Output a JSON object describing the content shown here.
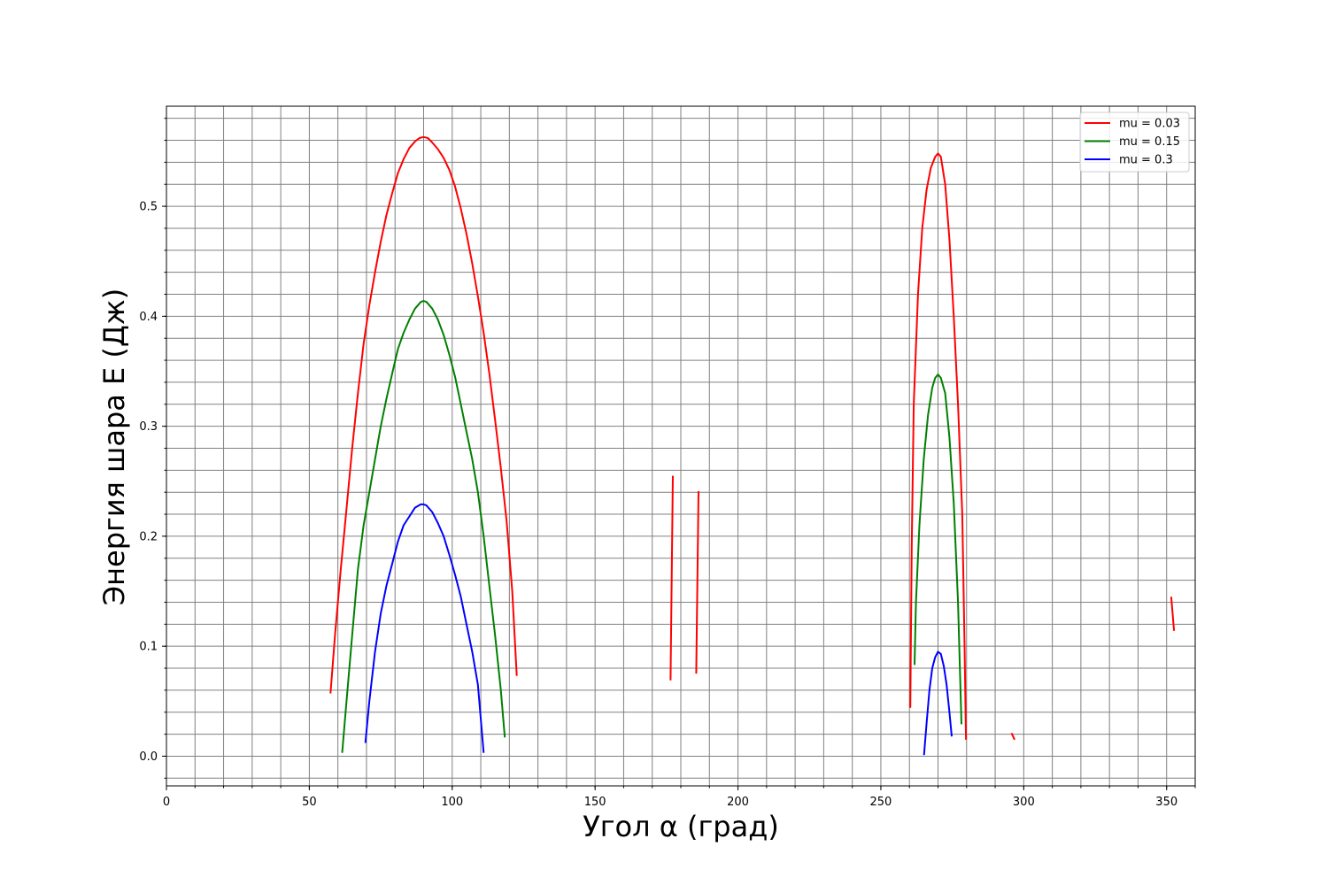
{
  "chart_data": {
    "type": "line",
    "title": "",
    "xlabel": "Угол α (град)",
    "ylabel": "Энергия шара E (Дж)",
    "xlim": [
      0,
      360
    ],
    "ylim": [
      -0.027,
      0.591
    ],
    "x_ticks": [
      0,
      50,
      100,
      150,
      200,
      250,
      300,
      350
    ],
    "x_tick_labels": [
      "0",
      "50",
      "100",
      "150",
      "200",
      "250",
      "300",
      "350"
    ],
    "y_ticks": [
      0.0,
      0.1,
      0.2,
      0.3,
      0.4,
      0.5
    ],
    "y_tick_labels": [
      "0.0",
      "0.1",
      "0.2",
      "0.3",
      "0.4",
      "0.5"
    ],
    "x_minor_step": 10,
    "y_minor_step": 0.02,
    "grid": true,
    "legend_position": "top-right",
    "series": [
      {
        "name": "mu = 0.03",
        "color": "#ff0000",
        "segments": [
          [
            [
              57.4,
              0.057
            ],
            [
              59,
              0.11
            ],
            [
              61,
              0.17
            ],
            [
              63,
              0.225
            ],
            [
              65,
              0.28
            ],
            [
              67,
              0.33
            ],
            [
              69,
              0.375
            ],
            [
              71,
              0.41
            ],
            [
              73,
              0.44
            ],
            [
              75,
              0.468
            ],
            [
              77,
              0.492
            ],
            [
              79,
              0.512
            ],
            [
              81,
              0.53
            ],
            [
              83,
              0.543
            ],
            [
              85,
              0.553
            ],
            [
              87,
              0.559
            ],
            [
              88.5,
              0.562
            ],
            [
              90,
              0.563
            ],
            [
              91.5,
              0.562
            ],
            [
              93,
              0.558
            ],
            [
              95,
              0.552
            ],
            [
              97,
              0.544
            ],
            [
              99,
              0.533
            ],
            [
              101,
              0.518
            ],
            [
              103,
              0.498
            ],
            [
              105,
              0.475
            ],
            [
              107,
              0.448
            ],
            [
              109,
              0.418
            ],
            [
              111,
              0.385
            ],
            [
              113,
              0.348
            ],
            [
              115,
              0.306
            ],
            [
              117,
              0.262
            ],
            [
              119,
              0.215
            ],
            [
              121,
              0.15
            ],
            [
              122.6,
              0.073
            ]
          ],
          [
            [
              176.4,
              0.069
            ],
            [
              177.2,
              0.255
            ]
          ],
          [
            [
              185.4,
              0.075
            ],
            [
              186.2,
              0.241
            ]
          ],
          [
            [
              260.3,
              0.044
            ],
            [
              260.8,
              0.19
            ],
            [
              261.5,
              0.32
            ],
            [
              263,
              0.42
            ],
            [
              264.5,
              0.48
            ],
            [
              266,
              0.515
            ],
            [
              267.5,
              0.535
            ],
            [
              269,
              0.545
            ],
            [
              270,
              0.548
            ],
            [
              271,
              0.545
            ],
            [
              272.5,
              0.52
            ],
            [
              274,
              0.47
            ],
            [
              275.5,
              0.4
            ],
            [
              277,
              0.32
            ],
            [
              278.5,
              0.22
            ],
            [
              279.3,
              0.1
            ],
            [
              279.8,
              0.015
            ]
          ],
          [
            [
              295.7,
              0.021
            ],
            [
              296.8,
              0.015
            ]
          ],
          [
            [
              351.6,
              0.145
            ],
            [
              352.6,
              0.114
            ]
          ]
        ]
      },
      {
        "name": "mu = 0.15",
        "color": "#008000",
        "segments": [
          [
            [
              61.5,
              0.003
            ],
            [
              63,
              0.05
            ],
            [
              65,
              0.11
            ],
            [
              67,
              0.17
            ],
            [
              69,
              0.21
            ],
            [
              71,
              0.24
            ],
            [
              73,
              0.27
            ],
            [
              75,
              0.3
            ],
            [
              77,
              0.325
            ],
            [
              79,
              0.348
            ],
            [
              81,
              0.37
            ],
            [
              83,
              0.385
            ],
            [
              85,
              0.397
            ],
            [
              87,
              0.407
            ],
            [
              89,
              0.413
            ],
            [
              90,
              0.414
            ],
            [
              91,
              0.413
            ],
            [
              93,
              0.407
            ],
            [
              95,
              0.397
            ],
            [
              97,
              0.383
            ],
            [
              99,
              0.365
            ],
            [
              101,
              0.345
            ],
            [
              103,
              0.32
            ],
            [
              105,
              0.295
            ],
            [
              107,
              0.27
            ],
            [
              109,
              0.24
            ],
            [
              111,
              0.2
            ],
            [
              113,
              0.155
            ],
            [
              115,
              0.11
            ],
            [
              117,
              0.06
            ],
            [
              118.4,
              0.017
            ]
          ],
          [
            [
              261.8,
              0.083
            ],
            [
              262.3,
              0.14
            ],
            [
              263.5,
              0.21
            ],
            [
              265,
              0.27
            ],
            [
              266.5,
              0.31
            ],
            [
              268,
              0.335
            ],
            [
              269,
              0.344
            ],
            [
              270,
              0.347
            ],
            [
              271,
              0.344
            ],
            [
              272.5,
              0.33
            ],
            [
              274,
              0.29
            ],
            [
              275.5,
              0.23
            ],
            [
              277,
              0.14
            ],
            [
              278.2,
              0.029
            ]
          ]
        ]
      },
      {
        "name": "mu = 0.3",
        "color": "#0000ff",
        "segments": [
          [
            [
              69.6,
              0.012
            ],
            [
              71,
              0.05
            ],
            [
              73,
              0.095
            ],
            [
              75,
              0.13
            ],
            [
              77,
              0.155
            ],
            [
              79,
              0.175
            ],
            [
              81,
              0.195
            ],
            [
              83,
              0.21
            ],
            [
              85,
              0.218
            ],
            [
              87,
              0.226
            ],
            [
              89,
              0.229
            ],
            [
              90,
              0.229
            ],
            [
              91,
              0.228
            ],
            [
              93,
              0.222
            ],
            [
              95,
              0.212
            ],
            [
              97,
              0.2
            ],
            [
              99,
              0.183
            ],
            [
              101,
              0.165
            ],
            [
              103,
              0.145
            ],
            [
              105,
              0.12
            ],
            [
              107,
              0.095
            ],
            [
              109,
              0.065
            ],
            [
              111,
              0.003
            ]
          ],
          [
            [
              265.1,
              0.001
            ],
            [
              266,
              0.03
            ],
            [
              267,
              0.06
            ],
            [
              268,
              0.08
            ],
            [
              269,
              0.09
            ],
            [
              270,
              0.095
            ],
            [
              271,
              0.093
            ],
            [
              272,
              0.082
            ],
            [
              273,
              0.065
            ],
            [
              274,
              0.04
            ],
            [
              274.8,
              0.018
            ]
          ]
        ]
      }
    ]
  }
}
